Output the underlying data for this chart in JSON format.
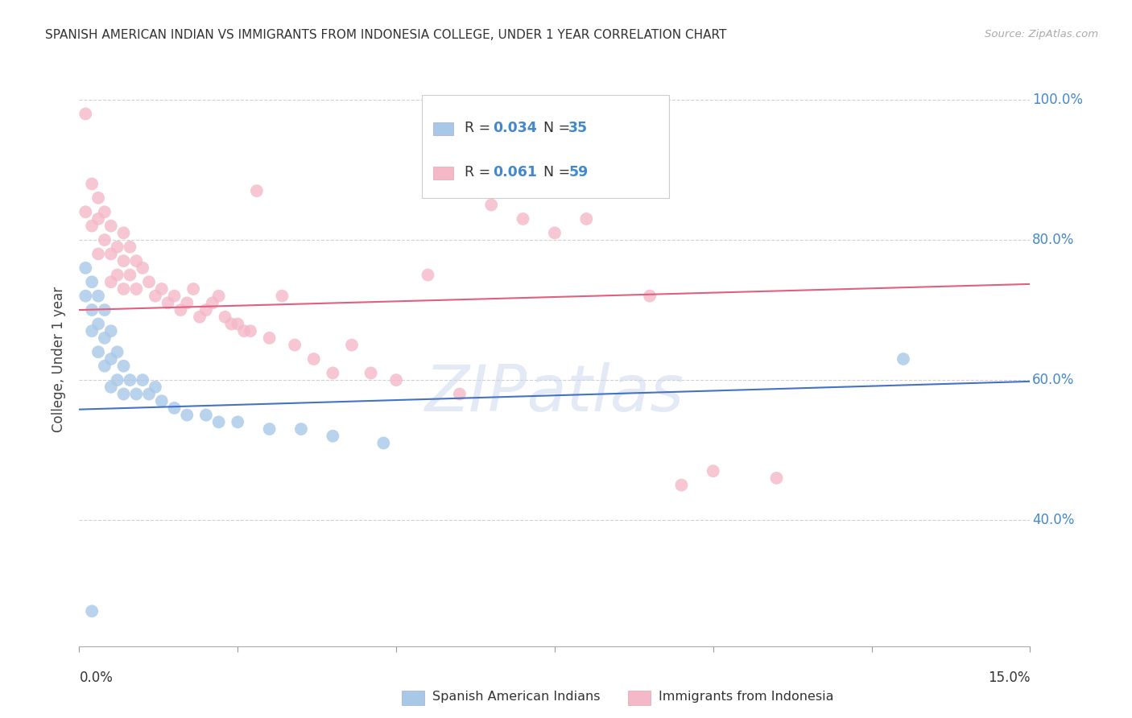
{
  "title": "SPANISH AMERICAN INDIAN VS IMMIGRANTS FROM INDONESIA COLLEGE, UNDER 1 YEAR CORRELATION CHART",
  "source": "Source: ZipAtlas.com",
  "ylabel": "College, Under 1 year",
  "y_tick_labels": [
    "40.0%",
    "60.0%",
    "80.0%",
    "100.0%"
  ],
  "y_tick_values": [
    0.4,
    0.6,
    0.8,
    1.0
  ],
  "x_min": 0.0,
  "x_max": 0.15,
  "y_min": 0.22,
  "y_max": 1.04,
  "legend_r1": "0.034",
  "legend_n1": "35",
  "legend_r2": "0.061",
  "legend_n2": "59",
  "label1": "Spanish American Indians",
  "label2": "Immigrants from Indonesia",
  "color1": "#a8c8e8",
  "color2": "#f4b8c8",
  "trendline_color1": "#4472c4",
  "trendline_color2": "#e06080",
  "scatter1_x": [
    0.001,
    0.001,
    0.002,
    0.002,
    0.002,
    0.003,
    0.003,
    0.003,
    0.004,
    0.004,
    0.004,
    0.005,
    0.005,
    0.005,
    0.006,
    0.006,
    0.007,
    0.007,
    0.008,
    0.009,
    0.01,
    0.011,
    0.012,
    0.013,
    0.015,
    0.017,
    0.02,
    0.022,
    0.025,
    0.03,
    0.035,
    0.04,
    0.048,
    0.13,
    0.002
  ],
  "scatter1_y": [
    0.76,
    0.72,
    0.74,
    0.7,
    0.67,
    0.72,
    0.68,
    0.64,
    0.7,
    0.66,
    0.62,
    0.67,
    0.63,
    0.59,
    0.64,
    0.6,
    0.62,
    0.58,
    0.6,
    0.58,
    0.6,
    0.58,
    0.59,
    0.57,
    0.56,
    0.55,
    0.55,
    0.54,
    0.54,
    0.53,
    0.53,
    0.52,
    0.51,
    0.63,
    0.27
  ],
  "scatter2_x": [
    0.001,
    0.001,
    0.002,
    0.002,
    0.003,
    0.003,
    0.003,
    0.004,
    0.004,
    0.005,
    0.005,
    0.005,
    0.006,
    0.006,
    0.007,
    0.007,
    0.007,
    0.008,
    0.008,
    0.009,
    0.009,
    0.01,
    0.011,
    0.012,
    0.013,
    0.014,
    0.015,
    0.016,
    0.017,
    0.018,
    0.019,
    0.02,
    0.021,
    0.022,
    0.023,
    0.024,
    0.025,
    0.026,
    0.027,
    0.028,
    0.03,
    0.032,
    0.034,
    0.037,
    0.04,
    0.043,
    0.046,
    0.05,
    0.055,
    0.06,
    0.065,
    0.07,
    0.075,
    0.08,
    0.085,
    0.09,
    0.095,
    0.1,
    0.11
  ],
  "scatter2_y": [
    0.98,
    0.84,
    0.88,
    0.82,
    0.86,
    0.83,
    0.78,
    0.84,
    0.8,
    0.82,
    0.78,
    0.74,
    0.79,
    0.75,
    0.81,
    0.77,
    0.73,
    0.79,
    0.75,
    0.77,
    0.73,
    0.76,
    0.74,
    0.72,
    0.73,
    0.71,
    0.72,
    0.7,
    0.71,
    0.73,
    0.69,
    0.7,
    0.71,
    0.72,
    0.69,
    0.68,
    0.68,
    0.67,
    0.67,
    0.87,
    0.66,
    0.72,
    0.65,
    0.63,
    0.61,
    0.65,
    0.61,
    0.6,
    0.75,
    0.58,
    0.85,
    0.83,
    0.81,
    0.83,
    0.88,
    0.72,
    0.45,
    0.47,
    0.46
  ],
  "trendline1_x": [
    0.0,
    0.15
  ],
  "trendline1_y": [
    0.558,
    0.598
  ],
  "trendline2_x": [
    0.0,
    0.15
  ],
  "trendline2_y": [
    0.7,
    0.737
  ],
  "watermark": "ZIPatlas",
  "background_color": "#ffffff",
  "grid_color": "#cccccc",
  "x_tick_positions": [
    0.0,
    0.025,
    0.05,
    0.075,
    0.1,
    0.125,
    0.15
  ]
}
